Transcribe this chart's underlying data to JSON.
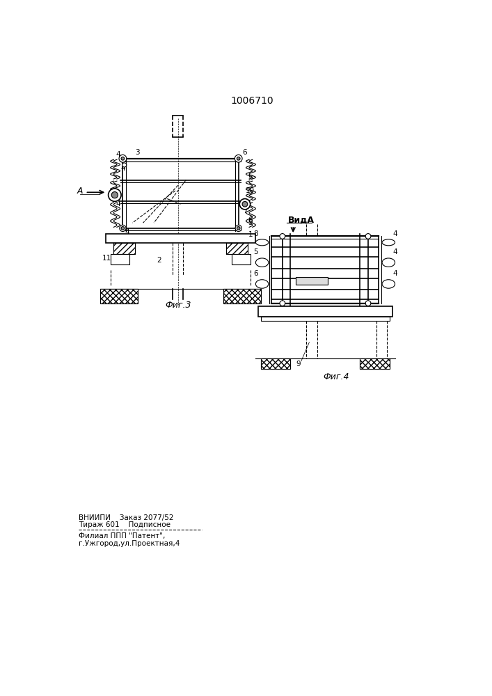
{
  "patent_number": "1006710",
  "fig3_label": "Фиг.3",
  "fig4_label": "Фиг.4",
  "vida_label": "ВидA",
  "bottom_text_line1": "ВНИИПИ    Заказ 2077/52",
  "bottom_text_line2": "Тираж 601    Подписное",
  "bottom_text_line3": "Филиал ППП \"Патент\",",
  "bottom_text_line4": "г.Ужгород,ул.Проектная,4",
  "bg_color": "#ffffff",
  "line_color": "#000000"
}
